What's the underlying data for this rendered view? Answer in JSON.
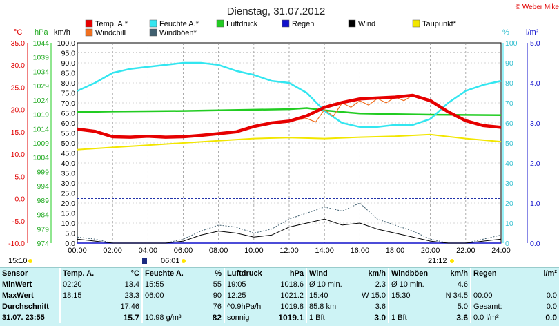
{
  "title": "Dienstag, 31.07.2012",
  "copyright": "© Weber Mike",
  "legend": [
    {
      "name": "Temp. A.*",
      "color": "#e60000"
    },
    {
      "name": "Feuchte A.*",
      "color": "#33e6f0"
    },
    {
      "name": "Luftdruck",
      "color": "#22cc22"
    },
    {
      "name": "Regen",
      "color": "#1111cc"
    },
    {
      "name": "Wind",
      "color": "#000000"
    },
    {
      "name": "Taupunkt*",
      "color": "#f2e600"
    },
    {
      "name": "Windchill",
      "color": "#f07020"
    },
    {
      "name": "Windböen*",
      "color": "#406070"
    }
  ],
  "axes": {
    "temp_unit": "°C",
    "pressure_unit": "hPa",
    "wind_unit": "km/h",
    "humidity_unit": "%",
    "rain_unit": "l/m²",
    "temp_ticks": [
      "35.0",
      "30.0",
      "25.0",
      "20.0",
      "15.0",
      "10.0",
      "5.0",
      "0.0",
      "-5.0",
      "-10.0"
    ],
    "pressure_ticks": [
      "1044",
      "1039",
      "1034",
      "1029",
      "1024",
      "1019",
      "1014",
      "1009",
      "1004",
      "999",
      "994",
      "989",
      "984",
      "979",
      "974"
    ],
    "wind_ticks": [
      "100.0",
      "95.0",
      "90.0",
      "85.0",
      "80.0",
      "75.0",
      "70.0",
      "65.0",
      "60.0",
      "55.0",
      "50.0",
      "45.0",
      "40.0",
      "35.0",
      "30.0",
      "25.0",
      "20.0",
      "15.0",
      "10.0",
      "5.0",
      "0.0"
    ],
    "humidity_ticks": [
      "100",
      "90",
      "80",
      "70",
      "60",
      "50",
      "40",
      "30",
      "20",
      "10",
      "0"
    ],
    "rain_ticks": [
      "5.0",
      "4.0",
      "3.0",
      "2.0",
      "1.0",
      "0.0"
    ],
    "time_ticks": [
      "00:00",
      "02:00",
      "04:00",
      "06:00",
      "08:00",
      "10:00",
      "12:00",
      "14:00",
      "16:00",
      "18:00",
      "20:00",
      "22:00",
      "24:00"
    ]
  },
  "sun": {
    "sunrise_label": "15:10",
    "moon_label": "06:01",
    "sunset_label": "21:12"
  },
  "chart_data": {
    "type": "line",
    "title": "Dienstag, 31.07.2012",
    "x_unit": "hours",
    "x_range": [
      0,
      24
    ],
    "series": [
      {
        "name": "Temp. A.*",
        "unit": "°C",
        "ylim": [
          -10,
          35
        ],
        "x": [
          0,
          1,
          2,
          3,
          4,
          5,
          6,
          7,
          8,
          9,
          10,
          11,
          12,
          13,
          14,
          15,
          16,
          17,
          18,
          19,
          20,
          21,
          22,
          23,
          24
        ],
        "values": [
          15.6,
          15.1,
          13.9,
          13.8,
          14.0,
          13.8,
          13.9,
          14.2,
          14.6,
          15.0,
          16.2,
          17.0,
          17.4,
          18.6,
          20.5,
          21.6,
          22.4,
          22.6,
          22.8,
          23.2,
          22.0,
          19.5,
          17.5,
          16.4,
          16.0
        ]
      },
      {
        "name": "Feuchte A.*",
        "unit": "%",
        "ylim": [
          0,
          100
        ],
        "x": [
          0,
          1,
          2,
          3,
          4,
          5,
          6,
          7,
          8,
          9,
          10,
          11,
          12,
          13,
          14,
          15,
          16,
          17,
          18,
          19,
          20,
          21,
          22,
          23,
          24
        ],
        "values": [
          76,
          80,
          85,
          87,
          88,
          89,
          90,
          90,
          89,
          86,
          84,
          81,
          80,
          75,
          66,
          60,
          58,
          58,
          59,
          59,
          62,
          70,
          76,
          79,
          81
        ]
      },
      {
        "name": "Luftdruck",
        "unit": "hPa",
        "ylim": [
          974,
          1044
        ],
        "x": [
          0,
          2,
          4,
          6,
          8,
          10,
          12,
          13,
          14,
          16,
          18,
          20,
          22,
          24
        ],
        "values": [
          1019.8,
          1020.0,
          1020.1,
          1020.2,
          1020.4,
          1020.6,
          1020.8,
          1021.2,
          1020.4,
          1019.3,
          1019.1,
          1018.9,
          1018.8,
          1018.7
        ]
      },
      {
        "name": "Taupunkt*",
        "unit": "°C",
        "ylim": [
          -10,
          35
        ],
        "x": [
          0,
          2,
          4,
          6,
          8,
          10,
          12,
          14,
          16,
          18,
          20,
          22,
          24
        ],
        "values": [
          11.0,
          11.5,
          12.0,
          12.5,
          13.0,
          13.5,
          13.7,
          13.5,
          13.8,
          14.0,
          14.4,
          13.5,
          12.8
        ]
      },
      {
        "name": "Windchill",
        "unit": "°C",
        "ylim": [
          -10,
          35
        ],
        "x": [
          12,
          13,
          13.5,
          14,
          14.5,
          15,
          15.5,
          16,
          16.5,
          17,
          17.5,
          18,
          18.5,
          19
        ],
        "values": [
          17.4,
          18.0,
          17.2,
          20.0,
          18.5,
          21.5,
          20.5,
          22.0,
          21.0,
          22.5,
          21.5,
          22.8,
          22.0,
          23.2
        ]
      },
      {
        "name": "Wind",
        "unit": "km/h",
        "ylim": [
          0,
          100
        ],
        "x": [
          0,
          1,
          2,
          3,
          4,
          5,
          6,
          7,
          8,
          9,
          10,
          11,
          12,
          13,
          14,
          15,
          16,
          17,
          18,
          19,
          20,
          21,
          22,
          23,
          24
        ],
        "values": [
          2,
          1,
          0,
          0,
          0,
          0,
          1,
          4,
          6,
          5,
          3,
          4,
          8,
          10,
          12,
          9,
          10,
          7,
          5,
          3,
          1,
          0,
          0,
          1,
          2
        ]
      },
      {
        "name": "Windböen*",
        "unit": "km/h",
        "ylim": [
          0,
          100
        ],
        "x": [
          0,
          1,
          2,
          3,
          4,
          5,
          6,
          7,
          8,
          9,
          10,
          11,
          12,
          13,
          14,
          15,
          16,
          17,
          18,
          19,
          20,
          21,
          22,
          23,
          24
        ],
        "values": [
          3,
          2,
          0,
          0,
          0,
          0,
          2,
          6,
          9,
          8,
          5,
          7,
          12,
          15,
          18,
          16,
          20,
          12,
          9,
          6,
          2,
          0,
          0,
          2,
          4
        ]
      },
      {
        "name": "Regen",
        "unit": "l/m²",
        "ylim": [
          0,
          5
        ],
        "x": [
          0,
          24
        ],
        "values": [
          0,
          0
        ]
      }
    ]
  },
  "stats": {
    "headers": {
      "sensor": "Sensor",
      "temp": "Temp. A.",
      "temp_unit": "°C",
      "hum": "Feuchte A.",
      "hum_unit": "%",
      "press": "Luftdruck",
      "press_unit": "hPa",
      "wind": "Wind",
      "wind_unit": "km/h",
      "gust": "Windböen",
      "gust_unit": "km/h",
      "rain": "Regen",
      "rain_unit": "l/m²"
    },
    "rows": [
      {
        "label": "MinWert",
        "temp_t": "02:20",
        "temp_v": "13.4",
        "hum_t": "15:55",
        "hum_v": "55",
        "press_t": "19:05",
        "press_v": "1018.6",
        "wind_t": "Ø 10 min.",
        "wind_v": "2.3",
        "gust_t": "Ø 10 min.",
        "gust_v": "4.6",
        "rain_t": "",
        "rain_v": ""
      },
      {
        "label": "MaxWert",
        "temp_t": "18:15",
        "temp_v": "23.3",
        "hum_t": "06:00",
        "hum_v": "90",
        "press_t": "12:25",
        "press_v": "1021.2",
        "wind_t": "15:40",
        "wind_v": "W 15.0",
        "gust_t": "15:30",
        "gust_v": "N 34.5",
        "rain_t": "00:00",
        "rain_v": "0.0"
      },
      {
        "label": "Durchschnitt",
        "temp_t": "",
        "temp_v": "17.46",
        "hum_t": "",
        "hum_v": "76",
        "press_t": "^0.9hPa/h",
        "press_v": "1019.8",
        "wind_t": "85.8 km",
        "wind_v": "3.6",
        "gust_t": "",
        "gust_v": "5.0",
        "rain_t": "Gesamt:",
        "rain_v": "0.0"
      },
      {
        "label": "31.07. 23:55",
        "temp_t": "",
        "temp_v": "15.7",
        "hum_t": "10.98 g/m³",
        "hum_v": "82",
        "press_t": "sonnig",
        "press_v": "1019.1",
        "wind_t": "1 Bft",
        "wind_v": "3.0",
        "gust_t": "1 Bft",
        "gust_v": "3.6",
        "rain_t": "0.0 l/m²",
        "rain_v": "0.0"
      }
    ]
  }
}
